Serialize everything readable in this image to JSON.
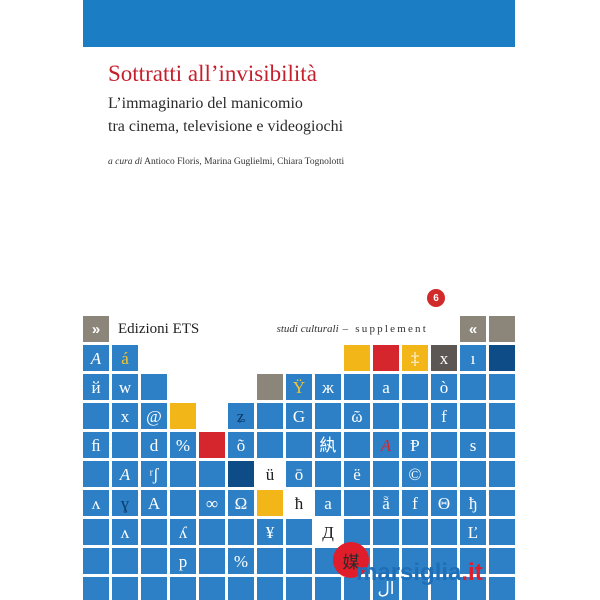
{
  "cover": {
    "title": "Sottratti all’invisibilità",
    "subtitle_lines": [
      "L’immaginario del manicomio",
      "tra cinema, televisione e videogiochi"
    ],
    "editors_prefix": "a cura di",
    "editors": "Antioco Floris, Marina Guglielmi, Chiara Tognolotti",
    "series_number": "6",
    "publisher": "Edizioni ETS",
    "series_name": "studi culturali",
    "series_suffix": "– supplement",
    "left_marker": "»",
    "right_marker": "«",
    "colors": {
      "top_bar": "#1b7dc4",
      "title": "#c61f2c",
      "series_badge": "#d12a2a",
      "marker": "#8b857a"
    }
  },
  "mosaic": {
    "palette": {
      "blue": "#2d80c5",
      "navy": "#0e4c87",
      "yellow": "#f2b619",
      "red": "#d6262d",
      "gray": "#8b857a",
      "darkgray": "#5c5752",
      "white": "#ffffff",
      "fg_white": "#ffffff",
      "fg_gold": "#f6c62c",
      "fg_red": "#d6262d",
      "fg_dark": "#1d1d1d",
      "fg_navy": "#0c3a6b"
    },
    "rows": [
      [
        {
          "bg": "blue",
          "t": "A",
          "i": true
        },
        {
          "bg": "blue",
          "t": "á",
          "fg": "gold"
        },
        {
          "bg": "none"
        },
        {
          "bg": "none"
        },
        {
          "bg": "none"
        },
        {
          "bg": "none"
        },
        {
          "bg": "none"
        },
        {
          "bg": "none"
        },
        {
          "bg": "none"
        },
        {
          "bg": "yellow"
        },
        {
          "bg": "red"
        },
        {
          "bg": "yellow",
          "t": "‡"
        },
        {
          "bg": "darkgray",
          "t": "x"
        },
        {
          "bg": "blue",
          "t": "ı"
        },
        {
          "bg": "navy"
        }
      ],
      [
        {
          "bg": "blue",
          "t": "й"
        },
        {
          "bg": "blue",
          "t": "w"
        },
        {
          "bg": "blue"
        },
        {
          "bg": "none"
        },
        {
          "bg": "none"
        },
        {
          "bg": "none"
        },
        {
          "bg": "gray"
        },
        {
          "bg": "blue",
          "t": "Ÿ",
          "fg": "gold"
        },
        {
          "bg": "blue",
          "t": "ж"
        },
        {
          "bg": "blue"
        },
        {
          "bg": "blue",
          "t": "a"
        },
        {
          "bg": "blue"
        },
        {
          "bg": "blue",
          "t": "ò"
        },
        {
          "bg": "blue"
        },
        {
          "bg": "blue"
        }
      ],
      [
        {
          "bg": "blue"
        },
        {
          "bg": "blue",
          "t": "x"
        },
        {
          "bg": "blue",
          "t": "@"
        },
        {
          "bg": "yellow"
        },
        {
          "bg": "none"
        },
        {
          "bg": "blue",
          "t": "ʑ",
          "fg": "navy"
        },
        {
          "bg": "blue"
        },
        {
          "bg": "blue",
          "t": "G"
        },
        {
          "bg": "blue"
        },
        {
          "bg": "blue",
          "t": "ῶ"
        },
        {
          "bg": "blue"
        },
        {
          "bg": "blue"
        },
        {
          "bg": "blue",
          "t": "f"
        },
        {
          "bg": "blue"
        },
        {
          "bg": "blue"
        }
      ],
      [
        {
          "bg": "blue",
          "t": "ﬁ"
        },
        {
          "bg": "blue"
        },
        {
          "bg": "blue",
          "t": "d"
        },
        {
          "bg": "blue",
          "t": "%"
        },
        {
          "bg": "red"
        },
        {
          "bg": "blue",
          "t": "õ"
        },
        {
          "bg": "blue"
        },
        {
          "bg": "blue"
        },
        {
          "bg": "blue",
          "t": "紈"
        },
        {
          "bg": "blue"
        },
        {
          "bg": "blue",
          "t": "A",
          "i": true,
          "fg": "red"
        },
        {
          "bg": "blue",
          "t": "Ᵽ"
        },
        {
          "bg": "blue"
        },
        {
          "bg": "blue",
          "t": "s"
        },
        {
          "bg": "blue"
        }
      ],
      [
        {
          "bg": "blue"
        },
        {
          "bg": "blue",
          "t": "A",
          "i": true
        },
        {
          "bg": "blue",
          "t": "ʳʃ"
        },
        {
          "bg": "blue"
        },
        {
          "bg": "blue"
        },
        {
          "bg": "navy"
        },
        {
          "bg": "white",
          "t": "ü",
          "fg": "dark"
        },
        {
          "bg": "blue",
          "t": "ō"
        },
        {
          "bg": "blue"
        },
        {
          "bg": "blue",
          "t": "ë"
        },
        {
          "bg": "blue"
        },
        {
          "bg": "blue",
          "t": "©"
        },
        {
          "bg": "blue"
        },
        {
          "bg": "blue"
        },
        {
          "bg": "blue"
        }
      ],
      [
        {
          "bg": "blue",
          "t": "ʌ"
        },
        {
          "bg": "blue",
          "t": "ɣ",
          "fg": "navy"
        },
        {
          "bg": "blue",
          "t": "A"
        },
        {
          "bg": "blue"
        },
        {
          "bg": "blue",
          "t": "∞"
        },
        {
          "bg": "blue",
          "t": "Ω"
        },
        {
          "bg": "yellow"
        },
        {
          "bg": "white",
          "t": "ħ",
          "fg": "dark"
        },
        {
          "bg": "blue",
          "t": "a"
        },
        {
          "bg": "blue"
        },
        {
          "bg": "blue",
          "t": "ẵ"
        },
        {
          "bg": "blue",
          "t": "f"
        },
        {
          "bg": "blue",
          "t": "Θ"
        },
        {
          "bg": "blue",
          "t": "ђ"
        },
        {
          "bg": "blue"
        }
      ],
      [
        {
          "bg": "blue"
        },
        {
          "bg": "blue",
          "t": "ʌ"
        },
        {
          "bg": "blue"
        },
        {
          "bg": "blue",
          "t": "ʎ"
        },
        {
          "bg": "blue"
        },
        {
          "bg": "blue"
        },
        {
          "bg": "blue",
          "t": "¥"
        },
        {
          "bg": "blue"
        },
        {
          "bg": "white",
          "t": "Д",
          "fg": "dark"
        },
        {
          "bg": "blue"
        },
        {
          "bg": "blue"
        },
        {
          "bg": "blue"
        },
        {
          "bg": "blue"
        },
        {
          "bg": "blue",
          "t": "Ľ"
        },
        {
          "bg": "blue"
        }
      ],
      [
        {
          "bg": "blue"
        },
        {
          "bg": "blue"
        },
        {
          "bg": "blue"
        },
        {
          "bg": "blue",
          "t": "p"
        },
        {
          "bg": "blue"
        },
        {
          "bg": "blue",
          "t": "%"
        },
        {
          "bg": "blue"
        },
        {
          "bg": "blue"
        },
        {
          "bg": "blue"
        },
        {
          "bg": "blue"
        },
        {
          "bg": "blue"
        },
        {
          "bg": "blue"
        },
        {
          "bg": "blue"
        },
        {
          "bg": "blue"
        },
        {
          "bg": "blue"
        }
      ],
      [
        {
          "bg": "blue"
        },
        {
          "bg": "blue"
        },
        {
          "bg": "blue"
        },
        {
          "bg": "blue"
        },
        {
          "bg": "blue"
        },
        {
          "bg": "blue"
        },
        {
          "bg": "blue"
        },
        {
          "bg": "blue"
        },
        {
          "bg": "blue"
        },
        {
          "bg": "blue"
        },
        {
          "bg": "blue",
          "t": "ال"
        },
        {
          "bg": "blue"
        },
        {
          "bg": "blue"
        },
        {
          "bg": "blue"
        },
        {
          "bg": "blue"
        }
      ]
    ]
  },
  "watermark": {
    "badge_glyph": "媒",
    "name": "marsiglia",
    "tld": ".it",
    "colors": {
      "badge": "#e01d2b",
      "name": "#1f6fb8",
      "tld": "#e01d2b"
    }
  }
}
